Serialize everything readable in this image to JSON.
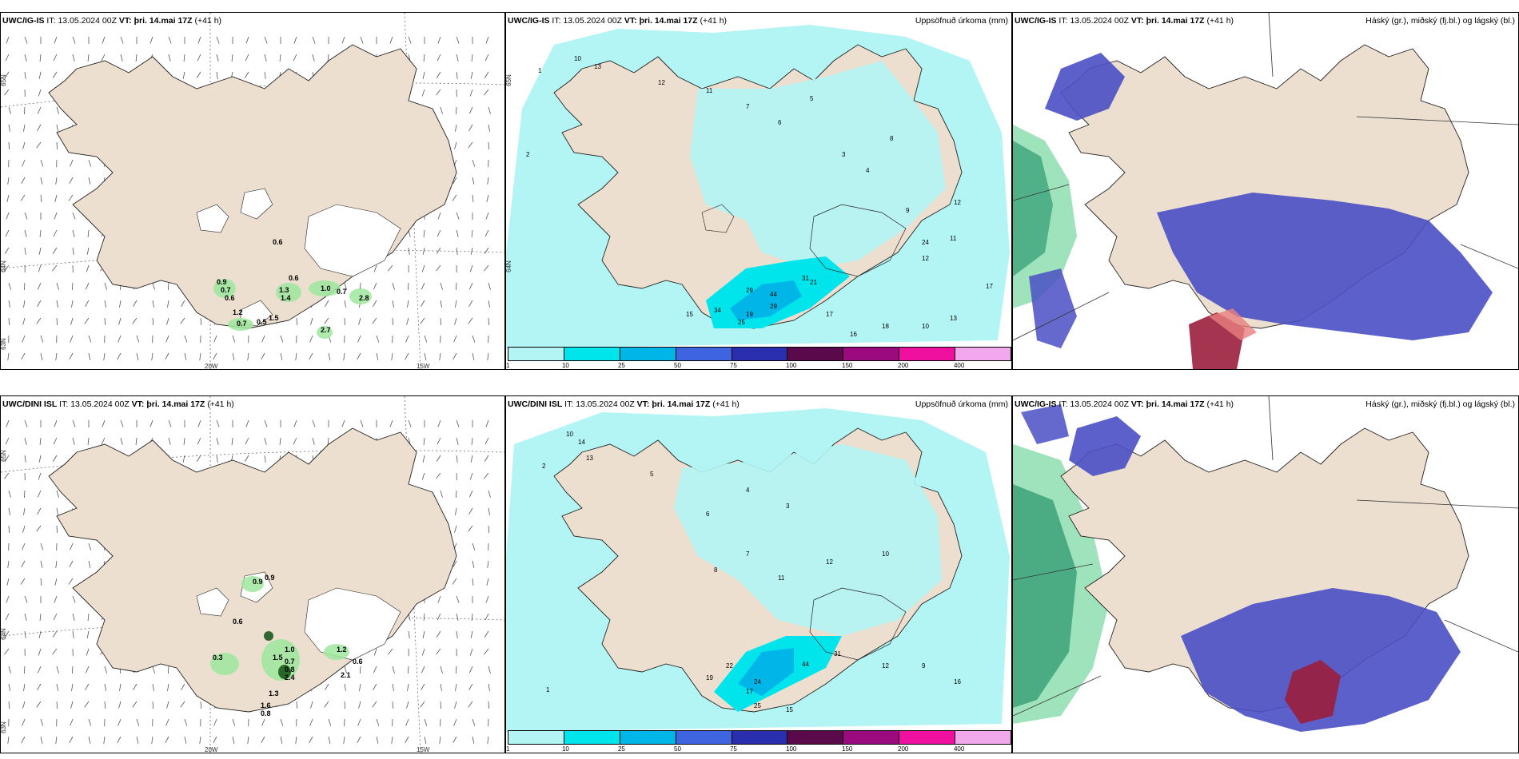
{
  "panels": [
    {
      "id": "ig-wind",
      "model": "UWC/IG-IS",
      "it_label": "IT:",
      "it_value": "13.05.2024 00Z",
      "vt_label": "VT:",
      "vt_value": "þri. 14.mai 17Z",
      "lead": "(+41 h)",
      "right_title": "",
      "labels": {
        "lon1": "20W",
        "lon2": "15W",
        "lat1": "65N",
        "lat2": "64N",
        "lat3": "63N"
      },
      "values": [
        "0.6",
        "0.9",
        "0.7",
        "0.6",
        "1.3",
        "1.4",
        "0.6",
        "1.0",
        "0.7",
        "2.8",
        "1.2",
        "0.7",
        "0.5",
        "1.5",
        "2.7"
      ]
    },
    {
      "id": "ig-precip",
      "model": "UWC/IG-IS",
      "it_label": "IT:",
      "it_value": "13.05.2024 00Z",
      "vt_label": "VT:",
      "vt_value": "þri. 14.mai 17Z",
      "lead": "(+41 h)",
      "right_title": "Uppsöfnuð úrkoma (mm)",
      "labels": {
        "lat1": "65N",
        "lat2": "64N"
      },
      "values": [
        "2",
        "1",
        "10",
        "13",
        "12",
        "11",
        "7",
        "6",
        "5",
        "3",
        "4",
        "8",
        "9",
        "12",
        "24",
        "11",
        "12",
        "29",
        "34",
        "31",
        "21",
        "44",
        "29",
        "19",
        "25",
        "15",
        "17",
        "16",
        "18",
        "10",
        "13",
        "17"
      ],
      "colorbar": {
        "colors": [
          "#b3f5f5",
          "#00e5ec",
          "#00b5e8",
          "#3e64e0",
          "#2a2fb0",
          "#5a0a4a",
          "#9c0a80",
          "#f010a0",
          "#f2a8ec"
        ],
        "ticks": [
          "1",
          "10",
          "25",
          "50",
          "75",
          "100",
          "150",
          "200",
          "400"
        ]
      }
    },
    {
      "id": "ig-cloud",
      "model": "UWC/IG-IS",
      "it_label": "IT:",
      "it_value": "13.05.2024 00Z",
      "vt_label": "VT:",
      "vt_value": "þri. 14.mai 17Z",
      "lead": "(+41 h)",
      "right_title": "Háský (gr.), miðský (fj.bl.) og lágský (bl.)"
    },
    {
      "id": "dini-wind",
      "model": "UWC/DINI ISL",
      "it_label": "IT:",
      "it_value": "13.05.2024 00Z",
      "vt_label": "VT:",
      "vt_value": "þri. 14.mai 17Z",
      "lead": "(+41 h)",
      "right_title": "",
      "labels": {
        "lon1": "20W",
        "lon2": "15W",
        "lat1": "65N",
        "lat2": "64N",
        "lat3": "63N"
      },
      "values": [
        "0.9",
        "0.9",
        "0.6",
        "0.3",
        "1.0",
        "0.7",
        "1.5",
        "0.8",
        "2.4",
        "1.2",
        "0.6",
        "1.3",
        "1.6",
        "0.8",
        "2.1"
      ]
    },
    {
      "id": "dini-precip",
      "model": "UWC/DINI ISL",
      "it_label": "IT:",
      "it_value": "13.05.2024 00Z",
      "vt_label": "VT:",
      "vt_value": "þri. 14.mai 17Z",
      "lead": "(+41 h)",
      "right_title": "Uppsöfnuð úrkoma (mm)",
      "labels": {
        "lat1": "65N",
        "lat2": "64N"
      },
      "values": [
        "1",
        "2",
        "10",
        "14",
        "13",
        "5",
        "6",
        "4",
        "3",
        "8",
        "7",
        "11",
        "12",
        "10",
        "44",
        "24",
        "19",
        "22",
        "17",
        "25",
        "15",
        "31",
        "12",
        "9",
        "16"
      ],
      "colorbar": {
        "colors": [
          "#b3f5f5",
          "#00e5ec",
          "#00b5e8",
          "#3e64e0",
          "#2a2fb0",
          "#5a0a4a",
          "#9c0a80",
          "#f010a0",
          "#f2a8ec"
        ],
        "ticks": [
          "1",
          "10",
          "25",
          "50",
          "75",
          "100",
          "150",
          "200",
          "400"
        ]
      }
    },
    {
      "id": "dini-cloud",
      "model": "UWC/IG-IS",
      "it_label": "IT:",
      "it_value": "13.05.2024 00Z",
      "vt_label": "VT:",
      "vt_value": "þri. 14.mai 17Z",
      "lead": "(+41 h)",
      "right_title": "Háský (gr.), miðský (fj.bl.) og lágský (bl.)"
    }
  ],
  "colors": {
    "land": "#ecdfcf",
    "ice": "#ffffff",
    "precip_light": "#b3f5f5",
    "precip_mid": "#00e5ec",
    "precip_high": "#00b5e8",
    "cloud_low": "#4a4fc4",
    "cloud_mid": "#2f9a72",
    "cloud_high": "#9a1e3c",
    "green_precip": "#9ee89e",
    "green_dark": "#1a5a1a"
  }
}
